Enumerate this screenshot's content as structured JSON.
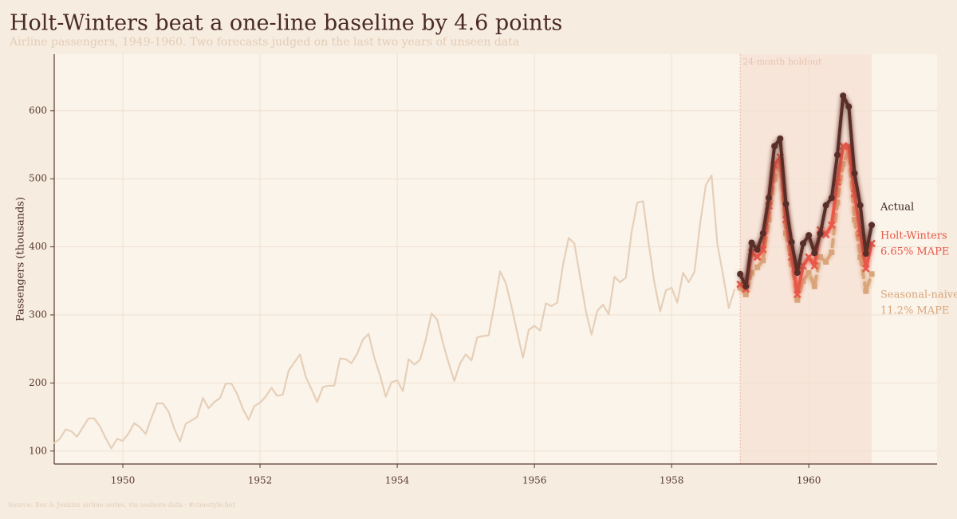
{
  "chart_data": {
    "type": "line",
    "title": "Holt-Winters beat a one-line baseline by 4.6 points",
    "subtitle": "Airline passengers, 1949-1960. Two forecasts judged on the last two years of unseen data",
    "y_label": "Passengers (thousands)",
    "source": "Source: Box & Jenkins airline series, via seaborn-data · #cinestyle.het",
    "xlim": [
      1949,
      1961.87
    ],
    "ylim": [
      81,
      683
    ],
    "xticks": [
      1950,
      1952,
      1954,
      1956,
      1958,
      1960
    ],
    "yticks": [
      100,
      200,
      300,
      400,
      500,
      600
    ],
    "grid": true,
    "holdout": {
      "label": "24-month holdout",
      "start": 1959,
      "end": 1960.917
    },
    "series": [
      {
        "color": "#e6cfb8",
        "x": [
          1949,
          1949.083,
          1949.167,
          1949.25,
          1949.333,
          1949.417,
          1949.5,
          1949.583,
          1949.667,
          1949.75,
          1949.833,
          1949.917,
          1950,
          1950.083,
          1950.167,
          1950.25,
          1950.333,
          1950.417,
          1950.5,
          1950.583,
          1950.667,
          1950.75,
          1950.833,
          1950.917,
          1951,
          1951.083,
          1951.167,
          1951.25,
          1951.333,
          1951.417,
          1951.5,
          1951.583,
          1951.667,
          1951.75,
          1951.833,
          1951.917,
          1952,
          1952.083,
          1952.167,
          1952.25,
          1952.333,
          1952.417,
          1952.5,
          1952.583,
          1952.667,
          1952.75,
          1952.833,
          1952.917,
          1953,
          1953.083,
          1953.167,
          1953.25,
          1953.333,
          1953.417,
          1953.5,
          1953.583,
          1953.667,
          1953.75,
          1953.833,
          1953.917,
          1954,
          1954.083,
          1954.167,
          1954.25,
          1954.333,
          1954.417,
          1954.5,
          1954.583,
          1954.667,
          1954.75,
          1954.833,
          1954.917,
          1955,
          1955.083,
          1955.167,
          1955.25,
          1955.333,
          1955.417,
          1955.5,
          1955.583,
          1955.667,
          1955.75,
          1955.833,
          1955.917,
          1956,
          1956.083,
          1956.167,
          1956.25,
          1956.333,
          1956.417,
          1956.5,
          1956.583,
          1956.667,
          1956.75,
          1956.833,
          1956.917,
          1957,
          1957.083,
          1957.167,
          1957.25,
          1957.333,
          1957.417,
          1957.5,
          1957.583,
          1957.667,
          1957.75,
          1957.833,
          1957.917,
          1958,
          1958.083,
          1958.167,
          1958.25,
          1958.333,
          1958.417,
          1958.5,
          1958.583,
          1958.667,
          1958.75,
          1958.833,
          1958.917
        ],
        "values": [
          112,
          118,
          132,
          129,
          121,
          135,
          148,
          148,
          136,
          119,
          104,
          118,
          115,
          126,
          141,
          135,
          125,
          149,
          170,
          170,
          158,
          133,
          114,
          140,
          145,
          150,
          178,
          163,
          172,
          178,
          199,
          199,
          184,
          162,
          146,
          166,
          171,
          180,
          193,
          181,
          183,
          218,
          230,
          242,
          209,
          191,
          172,
          194,
          196,
          196,
          236,
          235,
          229,
          243,
          264,
          272,
          237,
          211,
          180,
          201,
          204,
          188,
          235,
          227,
          234,
          264,
          302,
          293,
          259,
          229,
          203,
          229,
          242,
          233,
          267,
          269,
          270,
          315,
          364,
          347,
          312,
          274,
          237,
          278,
          284,
          277,
          317,
          313,
          318,
          374,
          413,
          405,
          355,
          306,
          271,
          306,
          315,
          301,
          356,
          348,
          355,
          422,
          465,
          467,
          404,
          347,
          305,
          336,
          340,
          318,
          362,
          348,
          363,
          435,
          491,
          505,
          404,
          359,
          310,
          337
        ]
      },
      {
        "name": "Seasonal-naive",
        "note": "11.2% MAPE",
        "color": "#d9a57a",
        "marker": "square",
        "dashed": true,
        "x": [
          1959,
          1959.083,
          1959.167,
          1959.25,
          1959.333,
          1959.417,
          1959.5,
          1959.583,
          1959.667,
          1959.75,
          1959.833,
          1959.917,
          1960,
          1960.083,
          1960.167,
          1960.25,
          1960.333,
          1960.417,
          1960.5,
          1960.583,
          1960.667,
          1960.75,
          1960.833,
          1960.917
        ],
        "values": [
          340,
          330,
          362,
          370,
          380,
          440,
          500,
          522,
          420,
          375,
          322,
          350,
          362,
          342,
          385,
          378,
          392,
          465,
          522,
          540,
          440,
          385,
          335,
          360
        ]
      },
      {
        "name": "Holt-Winters",
        "note": "6.65% MAPE",
        "color": "#e8594a",
        "marker": "cross",
        "x": [
          1959,
          1959.083,
          1959.167,
          1959.25,
          1959.333,
          1959.417,
          1959.5,
          1959.583,
          1959.667,
          1959.75,
          1959.833,
          1959.917,
          1960,
          1960.083,
          1960.167,
          1960.25,
          1960.333,
          1960.417,
          1960.5,
          1960.583,
          1960.667,
          1960.75,
          1960.833,
          1960.917
        ],
        "values": [
          345,
          338,
          392,
          385,
          396,
          460,
          520,
          532,
          440,
          385,
          330,
          372,
          385,
          372,
          425,
          418,
          432,
          495,
          548,
          548,
          478,
          420,
          368,
          405
        ]
      },
      {
        "name": "Actual",
        "color": "#5a2e28",
        "marker": "circle",
        "x": [
          1959,
          1959.083,
          1959.167,
          1959.25,
          1959.333,
          1959.417,
          1959.5,
          1959.583,
          1959.667,
          1959.75,
          1959.833,
          1959.917,
          1960,
          1960.083,
          1960.167,
          1960.25,
          1960.333,
          1960.417,
          1960.5,
          1960.583,
          1960.667,
          1960.75,
          1960.833,
          1960.917
        ],
        "values": [
          360,
          342,
          406,
          396,
          420,
          472,
          548,
          559,
          463,
          407,
          362,
          405,
          417,
          391,
          419,
          461,
          472,
          535,
          622,
          606,
          508,
          461,
          390,
          432
        ]
      }
    ]
  }
}
